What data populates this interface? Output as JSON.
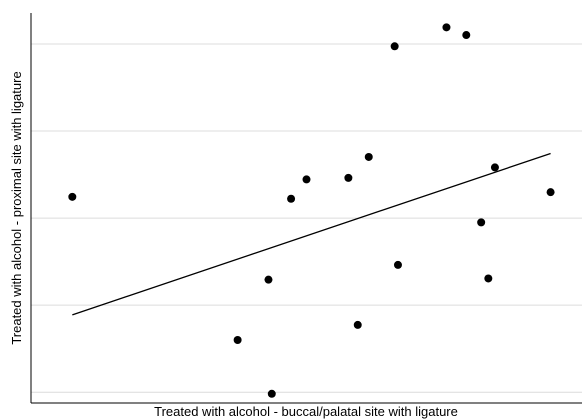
{
  "chart_data": {
    "type": "scatter",
    "title": "",
    "xlabel": "Treated with alcohol - buccal/palatal site with ligature",
    "ylabel": "Treated with alcohol - proximal site with ligature",
    "xlim": [
      0,
      100
    ],
    "ylim": [
      0,
      100
    ],
    "grid": "horizontal",
    "points": [
      {
        "x": 7.5,
        "y": 52.5
      },
      {
        "x": 37.5,
        "y": 15.5
      },
      {
        "x": 43.1,
        "y": 31.1
      },
      {
        "x": 43.7,
        "y": 1.6
      },
      {
        "x": 47.2,
        "y": 52.0
      },
      {
        "x": 50.0,
        "y": 57.0
      },
      {
        "x": 57.6,
        "y": 57.4
      },
      {
        "x": 59.3,
        "y": 19.4
      },
      {
        "x": 61.3,
        "y": 62.8
      },
      {
        "x": 66.0,
        "y": 91.4
      },
      {
        "x": 66.6,
        "y": 34.9
      },
      {
        "x": 75.4,
        "y": 96.3
      },
      {
        "x": 79.0,
        "y": 94.3
      },
      {
        "x": 81.7,
        "y": 45.9
      },
      {
        "x": 83.0,
        "y": 31.4
      },
      {
        "x": 84.2,
        "y": 60.1
      },
      {
        "x": 94.3,
        "y": 53.7
      }
    ],
    "trendline": {
      "x": [
        7.5,
        94.3
      ],
      "y": [
        22.0,
        63.7
      ]
    }
  },
  "colors": {
    "point": "#000000",
    "line": "#000000",
    "grid": "#dcdcdc",
    "axis": "#000000"
  }
}
